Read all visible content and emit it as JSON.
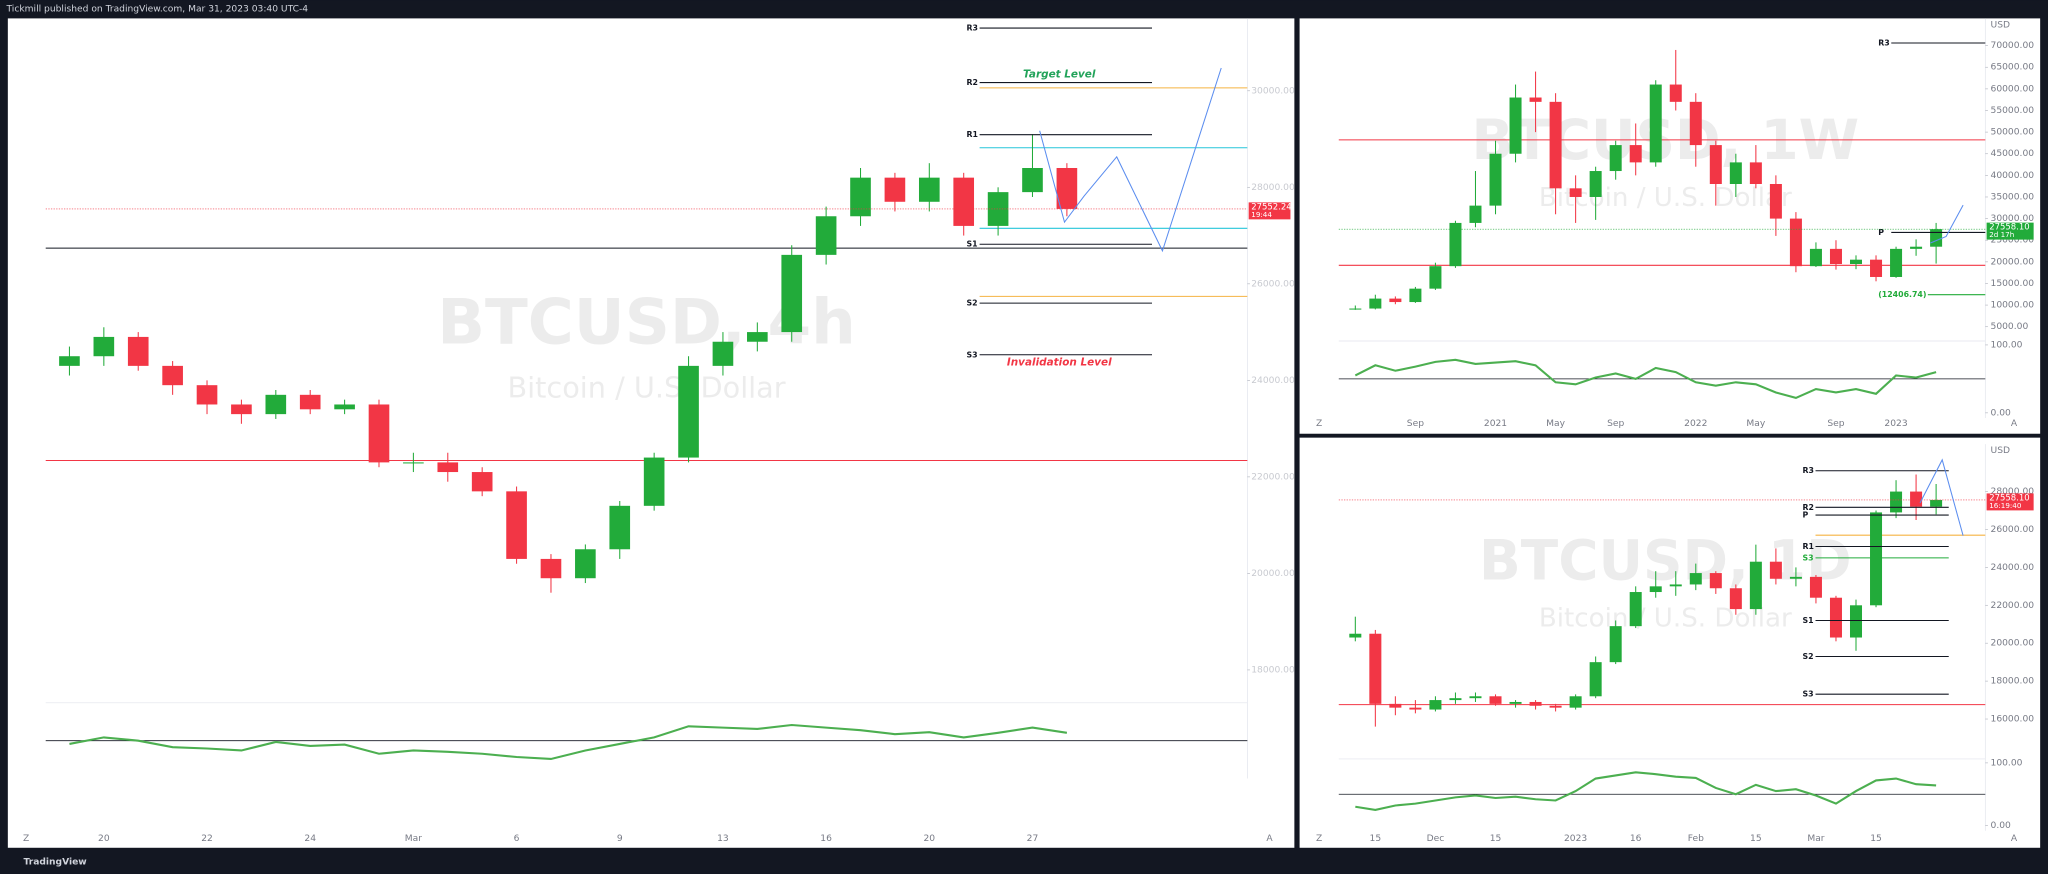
{
  "header": {
    "title": "Tickmill published on TradingView.com, Mar 31, 2023 03:40 UTC-4"
  },
  "footer": {
    "brand": "TradingView"
  },
  "chart_data": [
    {
      "type": "candlestick",
      "title": "BTCUSD, 4h",
      "subtitle": "Bitcoin / U.S. Dollar",
      "categories": [
        null,
        "20",
        null,
        null,
        "22",
        null,
        null,
        "24",
        null,
        null,
        "Mar",
        null,
        null,
        "6",
        null,
        null,
        "9",
        null,
        null,
        "13",
        null,
        null,
        "16",
        null,
        null,
        "20",
        null,
        null,
        "27",
        null
      ],
      "open": [
        24300,
        24500,
        24900,
        24300,
        23900,
        23500,
        23300,
        23700,
        23400,
        23500,
        22300,
        22300,
        22100,
        21700,
        20300,
        19900,
        20500,
        21400,
        22400,
        24300,
        24800,
        25000,
        26600,
        27400,
        28200,
        27700,
        28200,
        27200,
        27900,
        28400
      ],
      "high": [
        24700,
        25100,
        25000,
        24400,
        24000,
        23600,
        23800,
        23800,
        23600,
        23600,
        22500,
        22500,
        22200,
        21800,
        20400,
        20600,
        21500,
        22500,
        24500,
        25000,
        25200,
        26800,
        27600,
        28400,
        28300,
        28500,
        28300,
        28000,
        29100,
        28500
      ],
      "low": [
        24100,
        24300,
        24200,
        23700,
        23300,
        23100,
        23200,
        23300,
        23300,
        22200,
        22100,
        21900,
        21600,
        20200,
        19600,
        19800,
        20300,
        21300,
        22300,
        24100,
        24600,
        24800,
        26400,
        27200,
        27500,
        27500,
        27000,
        27000,
        27800,
        27400
      ],
      "close": [
        24500,
        24900,
        24300,
        23900,
        23500,
        23300,
        23700,
        23400,
        23500,
        22300,
        22300,
        22100,
        21700,
        20300,
        19900,
        20500,
        21400,
        22400,
        24300,
        24800,
        25000,
        26600,
        27400,
        28200,
        27700,
        28200,
        27200,
        27900,
        28400,
        27552.24
      ],
      "up_color": "#22ab3a",
      "down_color": "#f23645",
      "ylim": [
        17400,
        31500
      ],
      "yticks": [
        {
          "value": 30000,
          "label": "30000.00"
        },
        {
          "value": 28000,
          "label": "28000.00"
        },
        {
          "value": 26000,
          "label": "26000.00"
        },
        {
          "value": 24000,
          "label": "24000.00"
        },
        {
          "value": 22000,
          "label": "22000.00"
        },
        {
          "value": 20000,
          "label": "20000.00"
        },
        {
          "value": 18000,
          "label": "18000.00"
        }
      ],
      "last_price": 27552.24,
      "countdown": "19:44",
      "last_price_color": "#f23645",
      "levels": [
        {
          "label": "R3",
          "value": 31300
        },
        {
          "label": "R2",
          "value": 30170,
          "note": "Target Level",
          "note_color": "#22a35a"
        },
        {
          "label": "R1",
          "value": 29090
        },
        {
          "label": "S1",
          "value": 26820
        },
        {
          "label": "S2",
          "value": 25600
        },
        {
          "label": "S3",
          "value": 24530,
          "note": "Invalidation Level",
          "note_color": "#f23645"
        }
      ],
      "hlines": [
        {
          "value": 30060,
          "color": "#f5b342",
          "span": "right"
        },
        {
          "value": 28820,
          "color": "#26c6da",
          "span": "right"
        },
        {
          "value": 27150,
          "color": "#26c6da",
          "span": "right"
        },
        {
          "value": 25740,
          "color": "#f5b342",
          "span": "right"
        },
        {
          "value": 26740,
          "color": "#131722",
          "span": "full"
        },
        {
          "value": 22340,
          "color": "#f23645",
          "span": "full"
        }
      ],
      "indicator": {
        "values": [
          45,
          55,
          50,
          40,
          38,
          35,
          48,
          42,
          44,
          30,
          35,
          33,
          30,
          25,
          22,
          35,
          45,
          55,
          72,
          70,
          68,
          74,
          70,
          66,
          60,
          63,
          55,
          62,
          70,
          62
        ],
        "color": "#4caf50",
        "ylim": [
          0,
          100
        ]
      },
      "buttons": [
        "Z",
        "A"
      ]
    },
    {
      "type": "candlestick",
      "title": "BTCUSD, 1W",
      "subtitle": "Bitcoin / U.S. Dollar",
      "currency": "USD",
      "categories": [
        null,
        null,
        null,
        "Sep",
        null,
        null,
        null,
        "2021",
        null,
        null,
        "May",
        null,
        null,
        "Sep",
        null,
        null,
        null,
        "2022",
        null,
        null,
        "May",
        null,
        null,
        null,
        "Sep",
        null,
        null,
        "2023",
        null,
        null
      ],
      "open": [
        9100,
        9200,
        11500,
        10700,
        13800,
        19000,
        29000,
        33000,
        45000,
        58000,
        57000,
        37000,
        35000,
        41000,
        47000,
        43000,
        61000,
        57000,
        47000,
        38000,
        43000,
        38000,
        30000,
        19000,
        23000,
        19500,
        20500,
        16500,
        23000,
        23500
      ],
      "high": [
        9900,
        12400,
        12000,
        14200,
        19800,
        29500,
        41000,
        48000,
        61000,
        64000,
        59000,
        40000,
        42000,
        48000,
        52000,
        62000,
        69000,
        59000,
        48000,
        45000,
        47000,
        40000,
        31500,
        24500,
        25000,
        21500,
        21500,
        23500,
        25200,
        29000
      ],
      "low": [
        8900,
        9000,
        10200,
        10500,
        13500,
        18600,
        28000,
        31000,
        43000,
        50000,
        31000,
        29000,
        29700,
        39000,
        40000,
        42000,
        55000,
        42000,
        33000,
        35000,
        37000,
        26000,
        17600,
        18800,
        18200,
        18300,
        15500,
        16300,
        21400,
        19600
      ],
      "close": [
        9200,
        11500,
        10700,
        13800,
        19000,
        29000,
        33000,
        45000,
        58000,
        57000,
        37000,
        35000,
        41000,
        47000,
        43000,
        61000,
        57000,
        47000,
        38000,
        43000,
        38000,
        30000,
        19000,
        23000,
        19500,
        20500,
        16500,
        23000,
        23500,
        27558.1
      ],
      "up_color": "#22ab3a",
      "down_color": "#f23645",
      "ylim": [
        2600,
        76300
      ],
      "yticks": [
        {
          "value": 70000,
          "label": "70000.00"
        },
        {
          "value": 65000,
          "label": "65000.00"
        },
        {
          "value": 60000,
          "label": "60000.00"
        },
        {
          "value": 55000,
          "label": "55000.00"
        },
        {
          "value": 50000,
          "label": "50000.00"
        },
        {
          "value": 45000,
          "label": "45000.00"
        },
        {
          "value": 40000,
          "label": "40000.00"
        },
        {
          "value": 35000,
          "label": "35000.00"
        },
        {
          "value": 30000,
          "label": "30000.00"
        },
        {
          "value": 25000,
          "label": "25000.00"
        },
        {
          "value": 20000,
          "label": "20000.00"
        },
        {
          "value": 15000,
          "label": "15000.00"
        },
        {
          "value": 10000,
          "label": "10000.00"
        },
        {
          "value": 5000,
          "label": "5000.00"
        }
      ],
      "last_price": {
        "value": 27558.1,
        "label": "27558.10"
      },
      "countdown": "2d 17h",
      "last_price_color": "#22ab3a",
      "levels": [
        {
          "label": "R3",
          "value": 70600
        },
        {
          "label": "P",
          "value": 26800
        },
        {
          "label": "(12406.74)",
          "value": 12406.74,
          "color": "#22ab3a"
        }
      ],
      "hlines": [
        {
          "value": 48200,
          "color": "#f23645",
          "span": "full"
        },
        {
          "value": 19200,
          "color": "#f23645",
          "span": "full"
        }
      ],
      "indicator": {
        "values": [
          55,
          70,
          62,
          68,
          75,
          78,
          72,
          74,
          76,
          70,
          45,
          42,
          52,
          58,
          50,
          66,
          60,
          45,
          40,
          45,
          42,
          30,
          22,
          35,
          30,
          35,
          28,
          55,
          52,
          60
        ],
        "color": "#4caf50",
        "ylim": [
          0,
          100
        ],
        "yticks": [
          {
            "value": 100,
            "label": "100.00"
          },
          {
            "value": 0,
            "label": "0.00"
          }
        ]
      },
      "buttons": [
        "Z",
        "A"
      ]
    },
    {
      "type": "candlestick",
      "title": "BTCUSD, 1D",
      "subtitle": "Bitcoin / U.S. Dollar",
      "currency": "USD",
      "categories": [
        null,
        "15",
        null,
        null,
        "Dec",
        null,
        null,
        "15",
        null,
        null,
        null,
        "2023",
        null,
        null,
        "16",
        null,
        null,
        "Feb",
        null,
        null,
        "15",
        null,
        null,
        "Mar",
        null,
        null,
        "15",
        null,
        null,
        null
      ],
      "open": [
        20300,
        20500,
        16800,
        16600,
        16500,
        17000,
        17100,
        17200,
        16800,
        16900,
        16700,
        16600,
        17200,
        19000,
        20900,
        22700,
        23000,
        23100,
        23700,
        22900,
        21800,
        24300,
        23400,
        23500,
        22400,
        20300,
        22000,
        26900,
        28000,
        27200
      ],
      "high": [
        21400,
        20700,
        17200,
        17000,
        17200,
        17400,
        17400,
        17300,
        17000,
        17000,
        16800,
        17300,
        19300,
        21200,
        23000,
        23800,
        23800,
        24200,
        23800,
        23100,
        25200,
        25000,
        24000,
        23600,
        22500,
        22300,
        27000,
        28600,
        28900,
        28400
      ],
      "low": [
        20100,
        15600,
        16200,
        16300,
        16400,
        16800,
        16900,
        16700,
        16600,
        16500,
        16400,
        16500,
        17100,
        18900,
        20800,
        22400,
        22500,
        22800,
        22600,
        21500,
        21500,
        23100,
        23000,
        22100,
        20100,
        19600,
        21900,
        26600,
        26500,
        26800
      ],
      "close": [
        20500,
        16800,
        16600,
        16500,
        17000,
        17100,
        17200,
        16800,
        16900,
        16700,
        16600,
        17200,
        19000,
        20900,
        22700,
        23000,
        23100,
        23700,
        22900,
        21800,
        24300,
        23400,
        23500,
        22400,
        20300,
        22000,
        26900,
        28000,
        27200,
        27558.1
      ],
      "up_color": "#22ab3a",
      "down_color": "#f23645",
      "ylim": [
        14100,
        30500
      ],
      "yticks": [
        {
          "value": 28000,
          "label": "28000.00"
        },
        {
          "value": 26000,
          "label": "26000.00"
        },
        {
          "value": 24000,
          "label": "24000.00"
        },
        {
          "value": 22000,
          "label": "22000.00"
        },
        {
          "value": 20000,
          "label": "20000.00"
        },
        {
          "value": 18000,
          "label": "18000.00"
        },
        {
          "value": 16000,
          "label": "16000.00"
        }
      ],
      "last_price": {
        "value": 27558.1,
        "label": "27558.10"
      },
      "countdown": "16:19:40",
      "last_price_color": "#f23645",
      "levels": [
        {
          "label": "R3",
          "value": 29100
        },
        {
          "label": "R2",
          "value": 27170
        },
        {
          "label": "P",
          "value": 26760
        },
        {
          "label": "R1",
          "value": 25100
        },
        {
          "label": "S3",
          "value": 24500,
          "color": "#22ab3a"
        },
        {
          "label": "S1",
          "value": 21200
        },
        {
          "label": "S2",
          "value": 19300
        },
        {
          "label": "S3",
          "value": 17310
        }
      ],
      "hlines": [
        {
          "value": 16760,
          "color": "#f23645",
          "span": "full"
        },
        {
          "value": 25700,
          "color": "#f5b342",
          "span": "right"
        }
      ],
      "indicator": {
        "values": [
          30,
          25,
          32,
          35,
          40,
          45,
          48,
          44,
          46,
          42,
          40,
          55,
          75,
          80,
          85,
          82,
          78,
          76,
          60,
          50,
          65,
          55,
          58,
          48,
          35,
          55,
          72,
          75,
          66,
          64
        ],
        "color": "#4caf50",
        "ylim": [
          0,
          100
        ],
        "yticks": [
          {
            "value": 100,
            "label": "100.00"
          },
          {
            "value": 0,
            "label": "0.00"
          }
        ]
      },
      "buttons": [
        "Z",
        "A"
      ]
    }
  ]
}
